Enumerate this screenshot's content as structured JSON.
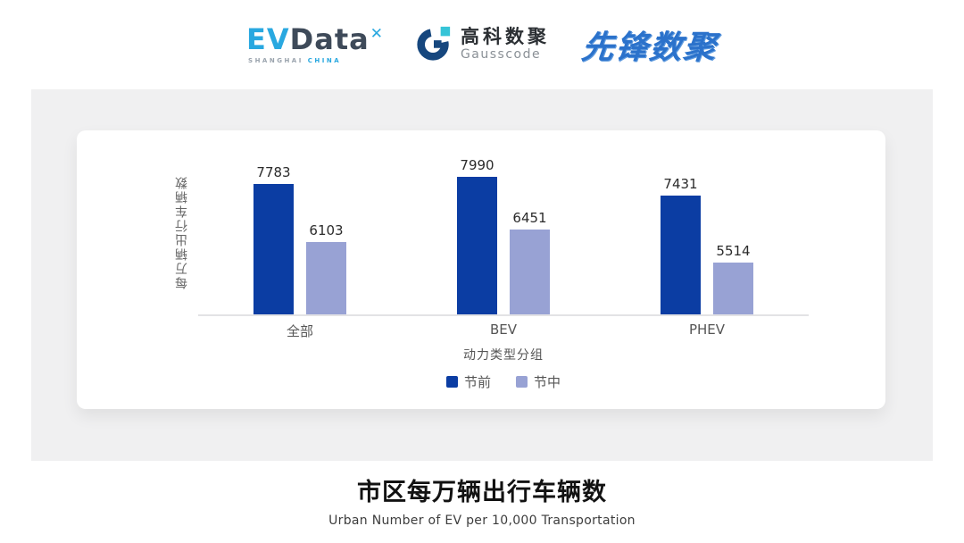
{
  "header": {
    "evdata_logo": {
      "ev": "EV",
      "data": "Data",
      "mark": "✕",
      "sub_left": "SHANGHAI",
      "sub_right": "CHINA"
    },
    "gausscode_logo": {
      "cn": "高科数聚",
      "en": "Gausscode"
    },
    "pioneer_logo": {
      "text": "先锋数聚"
    }
  },
  "chart_data": {
    "type": "bar",
    "categories": [
      "全部",
      "BEV",
      "PHEV"
    ],
    "series": [
      {
        "name": "节前",
        "color": "#0b3da3",
        "values": [
          7783,
          7990,
          7431
        ]
      },
      {
        "name": "节中",
        "color": "#98a2d4",
        "values": [
          6103,
          6451,
          5514
        ]
      }
    ],
    "ylabel": "每万辆出行车辆数",
    "xlabel": "动力类型分组",
    "ylim": [
      4000,
      8400
    ],
    "grid": false,
    "legend_position": "bottom",
    "data_labels": true
  },
  "footer": {
    "title": "市区每万辆出行车辆数",
    "subtitle": "Urban Number of EV per 10,000 Transportation"
  },
  "colors": {
    "panel_bg": "#f0f0f1",
    "card_bg": "#ffffff",
    "axis_line": "#e3e3e5",
    "series_pre": "#0b3da3",
    "series_mid": "#98a2d4",
    "evdata_blue": "#29a8e0",
    "evdata_dark": "#3e4a59",
    "gauss_navy": "#16477e",
    "gauss_teal": "#35c4d7",
    "pioneer_blue": "#2b72cb"
  }
}
